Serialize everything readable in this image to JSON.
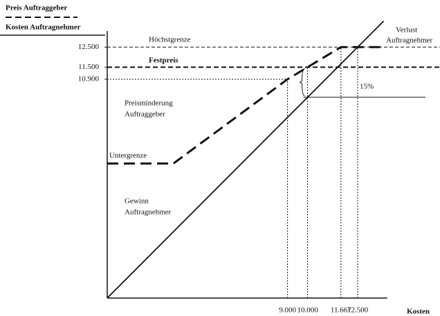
{
  "chart_data": {
    "type": "line",
    "x_axis_label": "Kosten",
    "xlim": [
      0,
      13800
    ],
    "ylim": [
      0,
      13300
    ],
    "xticks": [
      {
        "value": 9000,
        "label": "9.000"
      },
      {
        "value": 10000,
        "label": "10.000"
      },
      {
        "value": 11667,
        "label": "11.667"
      },
      {
        "value": 12500,
        "label": "12.500"
      }
    ],
    "yticks": [
      {
        "value": 10900,
        "label": "10.900"
      },
      {
        "value": 11500,
        "label": "11.500"
      },
      {
        "value": 12500,
        "label": "12.500"
      }
    ],
    "series": [
      {
        "name": "Preis Auftraggeber",
        "style": "dashed",
        "color": "#111111",
        "x": [
          0,
          3300,
          9000,
          10000,
          11667,
          13800
        ],
        "values": [
          6700,
          6700,
          10900,
          11500,
          12500,
          12500
        ]
      },
      {
        "name": "Kosten Auftragnehmer",
        "style": "solid",
        "color": "#111111",
        "x": [
          0,
          13800
        ],
        "values": [
          0,
          13800
        ]
      }
    ],
    "annotations": [
      "Höchstgrenze",
      "Festpreis",
      "Preisminderung",
      "Auftraggeber",
      "Untergrenze",
      "Gewinn",
      "Auftragnehmer",
      "Verlust",
      "Auftragnehmer",
      "15%"
    ]
  }
}
